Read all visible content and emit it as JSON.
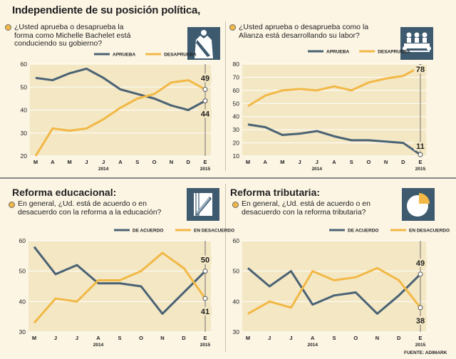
{
  "page": {
    "title": "Independiente de su posición política,",
    "source": "FUENTE: ADIMARK"
  },
  "colors": {
    "blue": "#4a6274",
    "orange": "#f2b845",
    "panel": "#f3e7c4"
  },
  "sections": {
    "bottom_left_title": "Reforma educacional:",
    "bottom_right_title": "Reforma tributaria:"
  },
  "questions": {
    "q1": "¿Usted aprueba o desaprueba la forma como Michelle Bachelet está conduciendo su gobierno?",
    "q2": "¿Usted aprueba o desaprueba como la Alianza está desarrollando su labor?",
    "q3": "En general, ¿Ud. está de acuerdo o en desacuerdo con la reforma a la educación?",
    "q4": "En general, ¿Ud. está de acuerdo o en desacuerdo con la reforma tributaria?"
  },
  "icons": {
    "q1": "president-sash-icon",
    "q2": "meeting-table-icon",
    "q3": "notebook-pencil-icon",
    "q4": "pie-chart-icon"
  },
  "chart_data": [
    {
      "type": "line",
      "categories": [
        "M",
        "A",
        "M",
        "J",
        "J",
        "A",
        "S",
        "O",
        "N",
        "D",
        "E"
      ],
      "year_labels": [
        "2014",
        "2015"
      ],
      "ylim": [
        20,
        60
      ],
      "yticks": [
        20,
        30,
        40,
        50,
        60
      ],
      "series": [
        {
          "name": "APRUEBA",
          "color": "#4a6274",
          "values": [
            54,
            53,
            56,
            58,
            54,
            49,
            47,
            45,
            42,
            40,
            44
          ]
        },
        {
          "name": "DESAPRUEBA",
          "color": "#f2b845",
          "values": [
            20,
            32,
            31,
            32,
            36,
            41,
            45,
            47,
            52,
            53,
            49
          ]
        }
      ],
      "end_labels": [
        "44",
        "49"
      ]
    },
    {
      "type": "line",
      "categories": [
        "M",
        "A",
        "M",
        "J",
        "J",
        "A",
        "S",
        "O",
        "N",
        "D",
        "E"
      ],
      "year_labels": [
        "2014",
        "2015"
      ],
      "ylim": [
        10,
        80
      ],
      "yticks": [
        10,
        20,
        30,
        40,
        50,
        60,
        70,
        80
      ],
      "series": [
        {
          "name": "APRUEBA",
          "color": "#4a6274",
          "values": [
            34,
            32,
            26,
            27,
            29,
            25,
            22,
            22,
            21,
            20,
            11
          ]
        },
        {
          "name": "DESAPRUEBA",
          "color": "#f2b845",
          "values": [
            48,
            56,
            60,
            61,
            60,
            63,
            60,
            66,
            69,
            71,
            78
          ]
        }
      ],
      "end_labels": [
        "11",
        "78"
      ]
    },
    {
      "type": "line",
      "categories": [
        "M",
        "J",
        "J",
        "A",
        "S",
        "O",
        "N",
        "D",
        "E"
      ],
      "year_labels": [
        "2014",
        "2015"
      ],
      "ylim": [
        30,
        60
      ],
      "yticks": [
        30,
        40,
        50,
        60
      ],
      "series": [
        {
          "name": "DE ACUERDO",
          "color": "#4a6274",
          "values": [
            58,
            49,
            52,
            46,
            46,
            45,
            36,
            43,
            50
          ]
        },
        {
          "name": "EN DESACUERDO",
          "color": "#f2b845",
          "values": [
            33,
            41,
            40,
            47,
            47,
            50,
            56,
            51,
            41
          ]
        }
      ],
      "end_labels": [
        "50",
        "41"
      ]
    },
    {
      "type": "line",
      "categories": [
        "M",
        "J",
        "J",
        "A",
        "S",
        "O",
        "N",
        "D",
        "E"
      ],
      "year_labels": [
        "2014",
        "2015"
      ],
      "ylim": [
        30,
        60
      ],
      "yticks": [
        30,
        40,
        50,
        60
      ],
      "series": [
        {
          "name": "DE ACUERDO",
          "color": "#4a6274",
          "values": [
            51,
            45,
            50,
            39,
            42,
            43,
            36,
            42,
            49
          ]
        },
        {
          "name": "EN DESACUERDO",
          "color": "#f2b845",
          "values": [
            36,
            40,
            38,
            50,
            47,
            48,
            51,
            47,
            38
          ]
        }
      ],
      "end_labels": [
        "49",
        "38"
      ]
    }
  ]
}
